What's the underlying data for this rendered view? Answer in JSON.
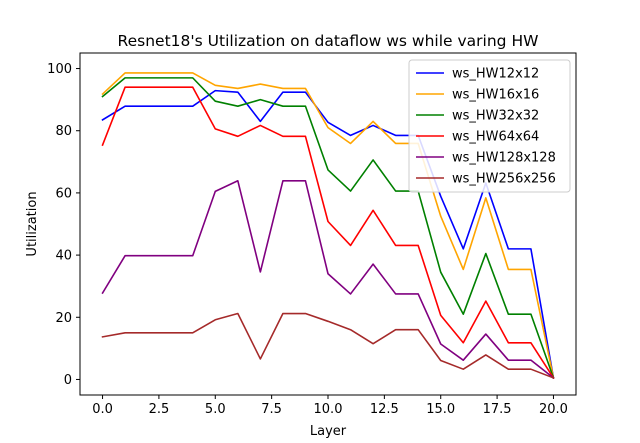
{
  "chart_data": {
    "type": "line",
    "title": "Resnet18's Utilization on dataflow ws while varing HW",
    "xlabel": "Layer",
    "ylabel": "Utilization",
    "xlim": [
      -1,
      21
    ],
    "ylim": [
      -5,
      105
    ],
    "xticks": [
      0.0,
      2.5,
      5.0,
      7.5,
      10.0,
      12.5,
      15.0,
      17.5,
      20.0
    ],
    "xtick_labels": [
      "0.0",
      "2.5",
      "5.0",
      "7.5",
      "10.0",
      "12.5",
      "15.0",
      "17.5",
      "20.0"
    ],
    "yticks": [
      0,
      20,
      40,
      60,
      80,
      100
    ],
    "ytick_labels": [
      "0",
      "20",
      "40",
      "60",
      "80",
      "100"
    ],
    "grid": false,
    "legend_position": "top-right",
    "x": [
      0,
      1,
      2,
      3,
      4,
      5,
      6,
      7,
      8,
      9,
      10,
      11,
      12,
      13,
      14,
      15,
      16,
      17,
      18,
      19,
      20
    ],
    "series": [
      {
        "name": "ws_HW12x12",
        "color": "#0000ff",
        "values": [
          83.5,
          87.9,
          87.9,
          87.9,
          87.9,
          92.9,
          92.4,
          83.0,
          92.4,
          92.4,
          82.7,
          78.5,
          81.7,
          78.5,
          78.5,
          58.9,
          42.0,
          63.2,
          42.0,
          42.0,
          0.5
        ]
      },
      {
        "name": "ws_HW16x16",
        "color": "#ffa500",
        "values": [
          91.8,
          98.6,
          98.6,
          98.6,
          98.6,
          94.6,
          93.6,
          95.0,
          93.6,
          93.6,
          81.0,
          75.9,
          83.0,
          75.9,
          75.9,
          52.5,
          35.4,
          58.4,
          35.4,
          35.4,
          0.5
        ]
      },
      {
        "name": "ws_HW32x32",
        "color": "#008000",
        "values": [
          91.0,
          97.0,
          97.0,
          97.0,
          97.0,
          89.5,
          87.9,
          90.0,
          87.9,
          87.9,
          67.4,
          60.6,
          70.6,
          60.6,
          60.6,
          34.5,
          21.0,
          40.5,
          21.0,
          21.0,
          0.5
        ]
      },
      {
        "name": "ws_HW64x64",
        "color": "#ff0000",
        "values": [
          75.4,
          94.0,
          94.0,
          94.0,
          94.0,
          80.6,
          78.2,
          81.7,
          78.2,
          78.2,
          50.8,
          43.1,
          54.4,
          43.1,
          43.1,
          20.6,
          11.8,
          25.2,
          11.8,
          11.8,
          0.5
        ]
      },
      {
        "name": "ws_HW128x128",
        "color": "#800080",
        "values": [
          27.8,
          39.8,
          39.8,
          39.8,
          39.8,
          60.5,
          63.9,
          34.6,
          63.9,
          63.9,
          34.0,
          27.5,
          37.1,
          27.5,
          27.5,
          11.4,
          6.2,
          14.6,
          6.2,
          6.2,
          0.5
        ]
      },
      {
        "name": "ws_HW256x256",
        "color": "#a52a2a",
        "values": [
          13.7,
          15.0,
          15.0,
          15.0,
          15.0,
          19.2,
          21.2,
          6.6,
          21.2,
          21.2,
          18.7,
          16.0,
          11.5,
          16.0,
          16.0,
          6.1,
          3.3,
          7.9,
          3.3,
          3.3,
          0.5
        ]
      }
    ]
  }
}
